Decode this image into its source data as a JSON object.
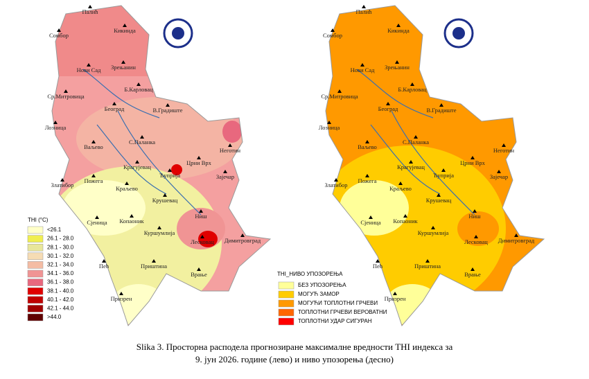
{
  "left_map": {
    "cities": [
      "Палић",
      "Кикинда",
      "Сомбор",
      "Нови Сад",
      "Зрењанин",
      "Б.Карловац",
      "Ср.Митровица",
      "Београд",
      "В.Градиште",
      "Лозница",
      "Ваљево",
      "С.Паланка",
      "Неготин",
      "Црни Врх",
      "Крагујевац",
      "Ћуприја",
      "Зајечар",
      "Златибор",
      "Пожега",
      "Краљево",
      "Крушевац",
      "Сјеница",
      "Копаоник",
      "Ниш",
      "Куршумлија",
      "Лесковац",
      "Димитровград",
      "Пећ",
      "Приштина",
      "Врање",
      "Призрен"
    ],
    "legend": {
      "title": "THI (°C)",
      "items": [
        {
          "label": "<26.1",
          "color": "#ffffc8"
        },
        {
          "label": "26.1 - 28.0",
          "color": "#f0ee50"
        },
        {
          "label": "28.1 - 30.0",
          "color": "#e8e69a"
        },
        {
          "label": "30.1 - 32.0",
          "color": "#f6dcb4"
        },
        {
          "label": "32.1 - 34.0",
          "color": "#f4bca4"
        },
        {
          "label": "34.1 - 36.0",
          "color": "#f09494"
        },
        {
          "label": "36.1 - 38.0",
          "color": "#e8687e"
        },
        {
          "label": "38.1 - 40.0",
          "color": "#e00000"
        },
        {
          "label": "40.1 - 42.0",
          "color": "#c00000"
        },
        {
          "label": "42.1 - 44.0",
          "color": "#a00000"
        },
        {
          "label": ">44.0",
          "color": "#600000"
        }
      ]
    }
  },
  "right_map": {
    "cities": [
      "Палић",
      "Кикинда",
      "Сомбор",
      "Нови Сад",
      "Зрењанин",
      "Б.Карловац",
      "Ср.Митровица",
      "Београд",
      "В.Градиште",
      "Лозница",
      "Ваљево",
      "С.Паланка",
      "Неготин",
      "Црни Врх",
      "Крагујевац",
      "Ћуприја",
      "Зајечар",
      "Златибор",
      "Пожега",
      "Краљево",
      "Крушевац",
      "Сјеница",
      "Копаоник",
      "Ниш",
      "Куршумлија",
      "Лесковац",
      "Димитровград",
      "Пећ",
      "Приштина",
      "Врање",
      "Призрен"
    ],
    "legend": {
      "title": "THI_НИВО УПОЗОРЕЊА",
      "items": [
        {
          "label": "БЕЗ УПОЗОРЕЊА",
          "color": "#ffff99"
        },
        {
          "label": "МОГУЋ ЗАМОР",
          "color": "#ffcc00"
        },
        {
          "label": "МОГУЋИ ТОПЛОТНИ ГРЧЕВИ",
          "color": "#ff9900"
        },
        {
          "label": "ТОПЛОТНИ ГРЧЕВИ ВЕРОВАТНИ",
          "color": "#ff6600"
        },
        {
          "label": "ТОПЛОТНИ УДАР СИГУРАН",
          "color": "#ff0000"
        }
      ]
    }
  },
  "caption": [
    "Slika 3. Просторна расподела прогнозиране максималне вредности THI индекса за",
    "9. јун 2026. године (лево) и ниво упозорења (десно)"
  ]
}
